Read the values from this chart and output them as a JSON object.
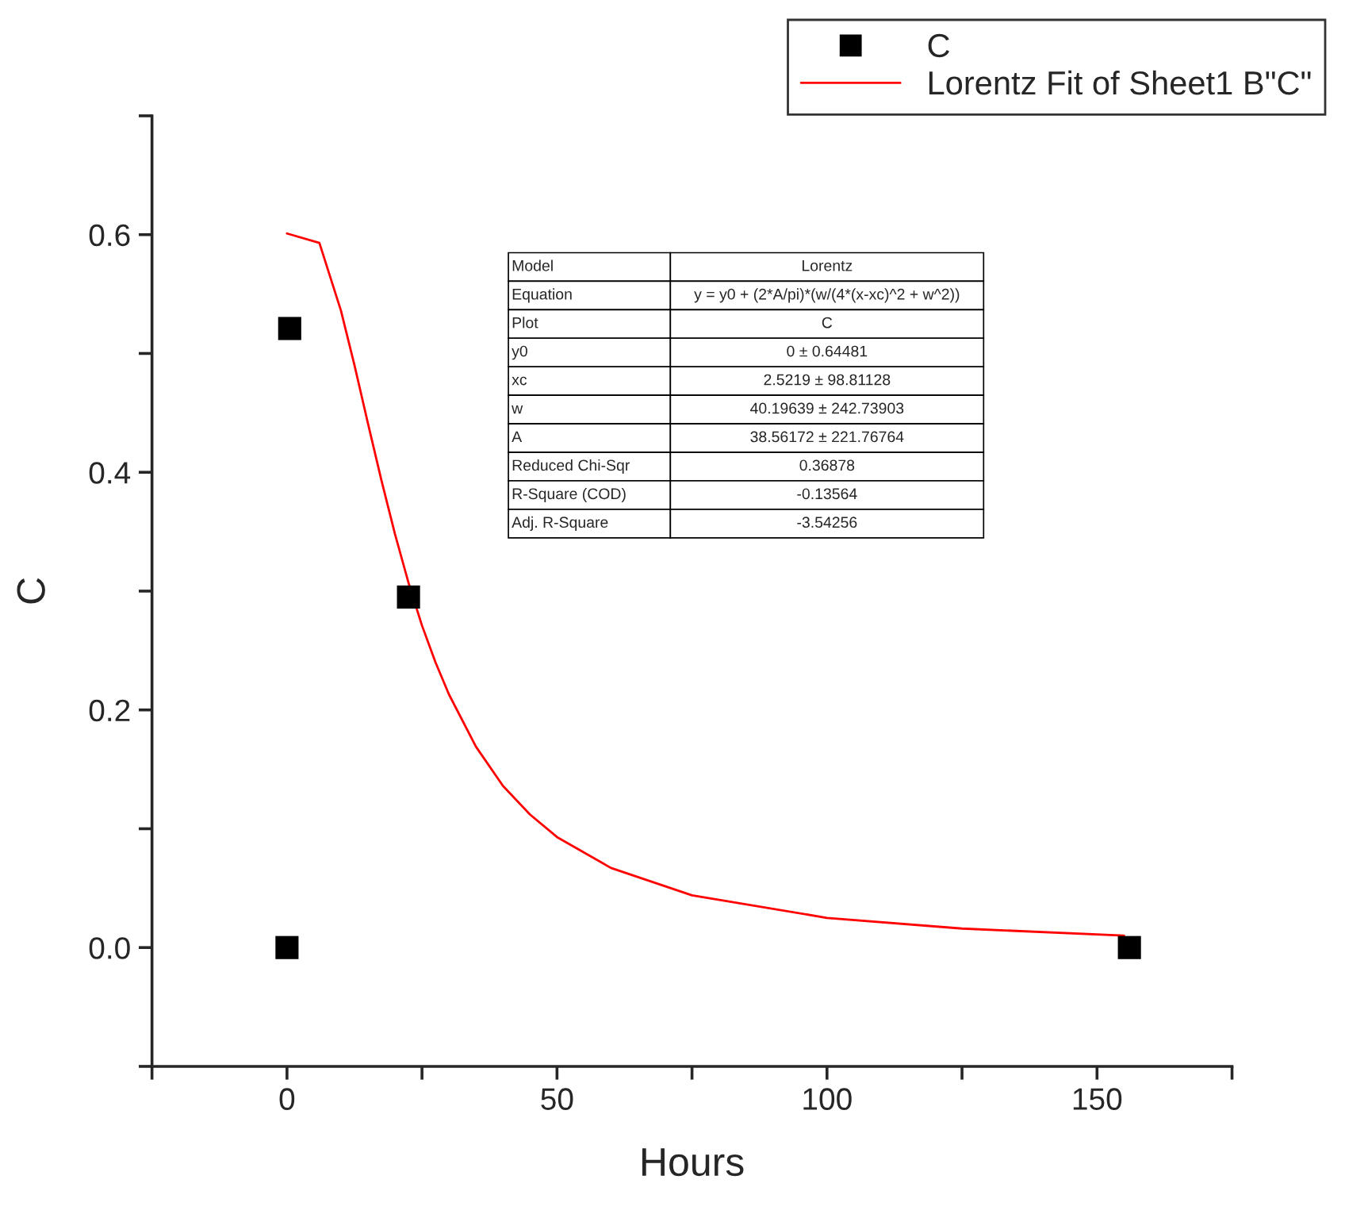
{
  "chart_data": {
    "type": "scatter",
    "xlabel": "Hours",
    "ylabel": "C",
    "series": [
      {
        "name": "C",
        "color": "#000000",
        "marker": "square",
        "x": [
          0,
          0.5,
          22.5,
          156
        ],
        "values": [
          0,
          0.521,
          0.295,
          0
        ]
      },
      {
        "name": "Lorentz Fit of Sheet1 B\"C\"",
        "type": "line",
        "color": "#ff0000",
        "marker": "none",
        "line_style": "solid",
        "x": [
          0,
          6,
          10,
          12.5,
          15,
          17.5,
          20,
          22.5,
          25,
          27.5,
          30,
          35,
          40,
          45,
          50,
          60,
          75,
          100,
          125,
          155
        ],
        "values": [
          0.601,
          0.593,
          0.536,
          0.49,
          0.441,
          0.393,
          0.348,
          0.307,
          0.271,
          0.24,
          0.213,
          0.169,
          0.136,
          0.112,
          0.093,
          0.067,
          0.044,
          0.025,
          0.016,
          0.01
        ]
      }
    ],
    "xlim": [
      -25,
      175
    ],
    "xticks": [
      {
        "value": -25,
        "label": null
      },
      0,
      {
        "value": 25,
        "label": null
      },
      50,
      {
        "value": 75,
        "label": null
      },
      100,
      {
        "value": 125,
        "label": null
      },
      150,
      {
        "value": 175,
        "label": null
      }
    ],
    "ylim": [
      -0.1,
      0.7
    ],
    "yticks": [
      {
        "value": -0.1,
        "label": null
      },
      {
        "value": 0.0,
        "label": "0.0"
      },
      {
        "value": 0.1,
        "label": null
      },
      {
        "value": 0.2,
        "label": "0.2"
      },
      {
        "value": 0.3,
        "label": null
      },
      {
        "value": 0.4,
        "label": "0.4"
      },
      {
        "value": 0.5,
        "label": null
      },
      {
        "value": 0.6,
        "label": "0.6"
      },
      {
        "value": 0.7,
        "label": null
      }
    ],
    "grid": false,
    "legend": "top right",
    "annotations": [
      "Model",
      "Lorentz",
      "Equation",
      "y = y0 + (2*A/pi)*(w/(4*(x-xc)^2 + w^2))",
      "Plot",
      "C",
      "y0",
      "0 ± 0.64481",
      "xc",
      "2.5219 ± 98.81128",
      "w",
      "40.19639 ± 242.73903",
      "A",
      "38.56172 ± 221.76764",
      "Reduced Chi-Sqr",
      "0.36878",
      "R-Square (COD)",
      "-0.13564",
      "Adj. R-Square",
      "-3.54256"
    ]
  }
}
